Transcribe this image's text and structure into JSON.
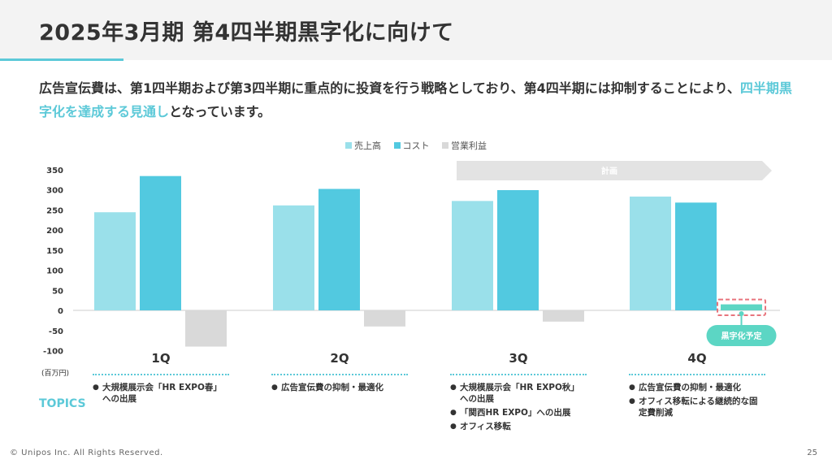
{
  "header": {
    "title": "2025年3月期 第4四半期黒字化に向けて"
  },
  "lead": {
    "part1": "広告宣伝費は、第1四半期および第3四半期に重点的に投資を行う戦略としており、第4四半期には抑制することにより、",
    "highlight": "四半期黒字化を達成する見通し",
    "part2": "となっています。"
  },
  "chart_data": {
    "type": "bar",
    "categories": [
      "1Q",
      "2Q",
      "3Q",
      "4Q"
    ],
    "series": [
      {
        "name": "売上高",
        "values": [
          244,
          261,
          272,
          283
        ],
        "color": "#9ae0ea"
      },
      {
        "name": "コスト",
        "values": [
          334,
          302,
          299,
          268
        ],
        "color": "#52c9e0"
      },
      {
        "name": "営業利益",
        "values": [
          -90,
          -40,
          -28,
          15
        ],
        "color": "#d9d9d9"
      }
    ],
    "ylim": [
      -100,
      350
    ],
    "yticks": [
      350,
      300,
      250,
      200,
      150,
      100,
      50,
      0,
      -50,
      -100
    ],
    "unit_label": "(百万円)",
    "plan_label": "計画",
    "profit_forecast_label": "黒字化予定",
    "forecast_color": "#5cd6c4",
    "callout_color": "#e8747c",
    "legend_placement": "top-center"
  },
  "topics": {
    "label": "TOPICS",
    "quarters": [
      {
        "items": [
          "大規模展示会「HR EXPO春」への出展"
        ]
      },
      {
        "items": [
          "広告宣伝費の抑制・最適化"
        ]
      },
      {
        "items": [
          "大規模展示会「HR EXPO秋」への出展",
          "「関西HR EXPO」への出展",
          "オフィス移転"
        ]
      },
      {
        "items": [
          "広告宣伝費の抑制・最適化",
          "オフィス移転による継続的な固定費削減"
        ]
      }
    ]
  },
  "footer": {
    "copyright": "© Unipos Inc. All Rights Reserved.",
    "page_number": "25"
  }
}
